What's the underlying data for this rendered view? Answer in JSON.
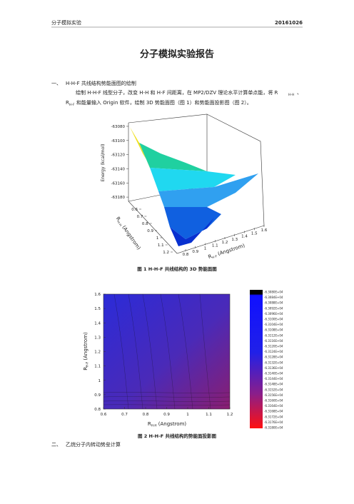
{
  "header": {
    "left": "分子模拟实验",
    "right": "20161026"
  },
  "title": "分子模拟实验报告",
  "section1": {
    "number": "一、",
    "heading": "H-H-F 共线结构势能面图的绘制",
    "paragraph": [
      "绘制 H-H-F 线型分子，改变 H-H 和 H-F 间距离，在 MP2/DZV 理论水平计算单点能，将 R",
      "H-H",
      "、",
      "R",
      "H-F",
      "和能量输入 Origin 软件，绘制 3D 势能面图（图 1）和势能面投影图（图 2）。"
    ]
  },
  "figure1": {
    "caption": "图 1  H-H-F 共线结构的 3D 势能面图",
    "z_label": "Energy (kcal/mol)",
    "zlim": [
      -63190,
      -63075
    ],
    "zticks": [
      -63080,
      -63100,
      -63120,
      -63140,
      -63160,
      -63180
    ],
    "hh_label": {
      "symbol": "R",
      "sub": "H-H",
      "unit": " (Angstrom)"
    },
    "hhlim": [
      0.6,
      1.2
    ],
    "hhticks": [
      0.6,
      0.7,
      0.8,
      0.9,
      1.0,
      1.1,
      1.2
    ],
    "hf_label": {
      "symbol": "R",
      "sub": "H-F",
      "unit": " (Angstrom)"
    },
    "hflim": [
      0.8,
      1.6
    ],
    "hfticks": [
      0.8,
      0.9,
      1.0,
      1.1,
      1.2,
      1.3,
      1.4,
      1.5,
      1.6
    ]
  },
  "figure2": {
    "caption": "图 2  H-H-F 共线结构的势能面投影图",
    "x_label": {
      "symbol": "R",
      "sub": "H-H",
      "unit": " (Angstrom)"
    },
    "xlim": [
      0.6,
      1.2
    ],
    "xticks": [
      0.6,
      0.7,
      0.8,
      0.9,
      1.0,
      1.1,
      1.2
    ],
    "y_label": {
      "symbol": "R",
      "sub": "H-F",
      "unit": " (Angstrom)"
    },
    "ylim": [
      0.8,
      1.6
    ],
    "yticks": [
      0.8,
      0.9,
      1.0,
      1.1,
      1.2,
      1.3,
      1.4,
      1.5,
      1.6
    ],
    "colorbar_labels": [
      "-6.3080E+04",
      "-6.3084E+04",
      "-6.3088E+04",
      "-6.3092E+04",
      "-6.3096E+04",
      "-6.3100E+04",
      "-6.3104E+04",
      "-6.3108E+04",
      "-6.3112E+04",
      "-6.3116E+04",
      "-6.3120E+04",
      "-6.3124E+04",
      "-6.3128E+04",
      "-6.3132E+04",
      "-6.3136E+04",
      "-6.3140E+04",
      "-6.3144E+04",
      "-6.3148E+04",
      "-6.3152E+04",
      "-6.3156E+04",
      "-6.3160E+04",
      "-6.3164E+04",
      "-6.3168E+04",
      "-6.3172E+04",
      "-6.3176E+04",
      "-6.3180E+04"
    ]
  },
  "section2": {
    "number": "二、",
    "heading": "乙烷分子内转动势垒计算"
  }
}
